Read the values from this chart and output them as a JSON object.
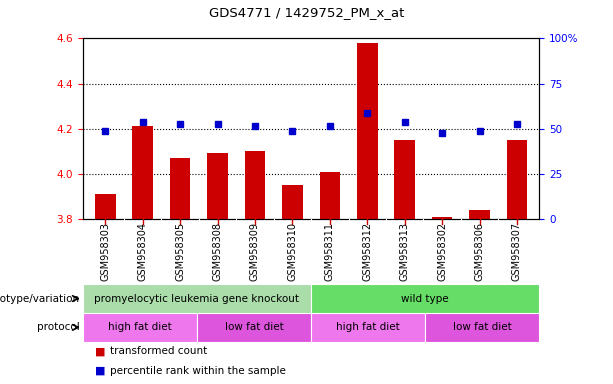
{
  "title": "GDS4771 / 1429752_PM_x_at",
  "samples": [
    "GSM958303",
    "GSM958304",
    "GSM958305",
    "GSM958308",
    "GSM958309",
    "GSM958310",
    "GSM958311",
    "GSM958312",
    "GSM958313",
    "GSM958302",
    "GSM958306",
    "GSM958307"
  ],
  "bar_values": [
    3.91,
    4.21,
    4.07,
    4.09,
    4.1,
    3.95,
    4.01,
    4.58,
    4.15,
    3.81,
    3.84,
    4.15
  ],
  "dot_values": [
    4.19,
    4.23,
    4.22,
    4.22,
    4.21,
    4.19,
    4.21,
    4.27,
    4.23,
    4.18,
    4.19,
    4.22
  ],
  "bar_bottom": 3.8,
  "ylim_left": [
    3.8,
    4.6
  ],
  "ylim_right": [
    0,
    100
  ],
  "yticks_left": [
    3.8,
    4.0,
    4.2,
    4.4,
    4.6
  ],
  "yticks_right": [
    0,
    25,
    50,
    75,
    100
  ],
  "bar_color": "#cc0000",
  "dot_color": "#0000cc",
  "xtick_bg_color": "#d3d3d3",
  "genotype_groups": [
    {
      "label": "promyelocytic leukemia gene knockout",
      "start": 0,
      "end": 6,
      "color": "#aaddaa"
    },
    {
      "label": "wild type",
      "start": 6,
      "end": 12,
      "color": "#66dd66"
    }
  ],
  "protocol_groups": [
    {
      "label": "high fat diet",
      "start": 0,
      "end": 3,
      "color": "#ee77ee"
    },
    {
      "label": "low fat diet",
      "start": 3,
      "end": 6,
      "color": "#dd55dd"
    },
    {
      "label": "high fat diet",
      "start": 6,
      "end": 9,
      "color": "#ee77ee"
    },
    {
      "label": "low fat diet",
      "start": 9,
      "end": 12,
      "color": "#dd55dd"
    }
  ],
  "legend_items": [
    {
      "label": "transformed count",
      "color": "#cc0000"
    },
    {
      "label": "percentile rank within the sample",
      "color": "#0000cc"
    }
  ],
  "background_color": "#ffffff",
  "title_fontsize": 9.5,
  "tick_fontsize": 7.5,
  "annot_fontsize": 7.5,
  "legend_fontsize": 7.5
}
